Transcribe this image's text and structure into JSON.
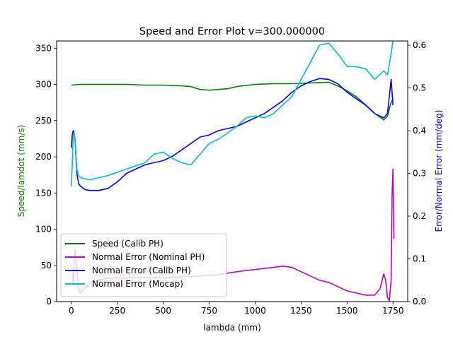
{
  "chart_data": {
    "type": "line",
    "title": "Speed and Error Plot v=300.000000",
    "xlabel": "lambda (mm)",
    "ylabel_left": "Speed/lamdot (mm/s)",
    "ylabel_right": "Error/Normal Error (mm/deg)",
    "xlim": [
      -80,
      1830
    ],
    "ylim_left": [
      0,
      360
    ],
    "ylim_right": [
      0,
      0.61
    ],
    "x_ticks": [
      0,
      250,
      500,
      750,
      1000,
      1250,
      1500,
      1750
    ],
    "y_ticks_left": [
      0,
      50,
      100,
      150,
      200,
      250,
      300,
      350
    ],
    "y_ticks_right": [
      0.0,
      0.1,
      0.2,
      0.3,
      0.4,
      0.5,
      0.6
    ],
    "x_tick_labels": [
      "0",
      "250",
      "500",
      "750",
      "1000",
      "1250",
      "1500",
      "1750"
    ],
    "y_tick_labels_left": [
      "0",
      "50",
      "100",
      "150",
      "200",
      "250",
      "300",
      "350"
    ],
    "y_tick_labels_right": [
      "0.0",
      "0.1",
      "0.2",
      "0.3",
      "0.4",
      "0.5",
      "0.6"
    ],
    "grid": false,
    "legend_position": "lower-left",
    "series": [
      {
        "name": "Speed (Calib PH)",
        "color": "#008000",
        "axis": "left",
        "points": [
          [
            0,
            299
          ],
          [
            50,
            300
          ],
          [
            100,
            300
          ],
          [
            200,
            300
          ],
          [
            300,
            300
          ],
          [
            400,
            299
          ],
          [
            500,
            299
          ],
          [
            600,
            298
          ],
          [
            650,
            297
          ],
          [
            700,
            293
          ],
          [
            750,
            292
          ],
          [
            800,
            293
          ],
          [
            850,
            294
          ],
          [
            900,
            297
          ],
          [
            1000,
            300
          ],
          [
            1100,
            301
          ],
          [
            1200,
            301
          ],
          [
            1300,
            302
          ],
          [
            1400,
            303
          ],
          [
            1450,
            298
          ],
          [
            1500,
            291
          ],
          [
            1550,
            283
          ],
          [
            1600,
            272
          ],
          [
            1650,
            260
          ],
          [
            1700,
            251
          ],
          [
            1720,
            256
          ],
          [
            1740,
            275
          ],
          [
            1750,
            280
          ]
        ]
      },
      {
        "name": "Normal Error (Nominal PH)",
        "color": "#bf00bf",
        "axis": "right",
        "points": [
          [
            5,
            0.065
          ],
          [
            10,
            0.04
          ],
          [
            15,
            0.095
          ],
          [
            20,
            0.123
          ],
          [
            25,
            0.1
          ],
          [
            30,
            0.07
          ],
          [
            40,
            0.03
          ],
          [
            50,
            0.02
          ],
          [
            60,
            0.025
          ],
          [
            80,
            0.035
          ],
          [
            100,
            0.045
          ],
          [
            150,
            0.05
          ],
          [
            200,
            0.055
          ],
          [
            250,
            0.055
          ],
          [
            300,
            0.055
          ],
          [
            400,
            0.057
          ],
          [
            500,
            0.055
          ],
          [
            600,
            0.058
          ],
          [
            700,
            0.06
          ],
          [
            800,
            0.063
          ],
          [
            900,
            0.07
          ],
          [
            1000,
            0.075
          ],
          [
            1100,
            0.08
          ],
          [
            1150,
            0.083
          ],
          [
            1200,
            0.08
          ],
          [
            1250,
            0.07
          ],
          [
            1300,
            0.06
          ],
          [
            1350,
            0.05
          ],
          [
            1400,
            0.045
          ],
          [
            1450,
            0.035
          ],
          [
            1500,
            0.025
          ],
          [
            1550,
            0.02
          ],
          [
            1600,
            0.015
          ],
          [
            1650,
            0.015
          ],
          [
            1680,
            0.03
          ],
          [
            1700,
            0.065
          ],
          [
            1710,
            0.05
          ],
          [
            1720,
            0.01
          ],
          [
            1730,
            0.002
          ],
          [
            1740,
            0.05
          ],
          [
            1745,
            0.25
          ],
          [
            1750,
            0.31
          ],
          [
            1755,
            0.147
          ]
        ]
      },
      {
        "name": "Normal Error (Calib PH)",
        "color": "#0000ff",
        "axis": "right",
        "points": [
          [
            0,
            0.36
          ],
          [
            5,
            0.39
          ],
          [
            10,
            0.4
          ],
          [
            15,
            0.395
          ],
          [
            20,
            0.38
          ],
          [
            25,
            0.34
          ],
          [
            30,
            0.3
          ],
          [
            40,
            0.275
          ],
          [
            50,
            0.27
          ],
          [
            75,
            0.262
          ],
          [
            100,
            0.26
          ],
          [
            150,
            0.26
          ],
          [
            200,
            0.265
          ],
          [
            250,
            0.28
          ],
          [
            300,
            0.3
          ],
          [
            400,
            0.32
          ],
          [
            500,
            0.33
          ],
          [
            550,
            0.34
          ],
          [
            600,
            0.355
          ],
          [
            650,
            0.37
          ],
          [
            700,
            0.385
          ],
          [
            750,
            0.39
          ],
          [
            800,
            0.4
          ],
          [
            850,
            0.405
          ],
          [
            900,
            0.41
          ],
          [
            950,
            0.42
          ],
          [
            1000,
            0.43
          ],
          [
            1050,
            0.44
          ],
          [
            1100,
            0.455
          ],
          [
            1150,
            0.47
          ],
          [
            1200,
            0.49
          ],
          [
            1250,
            0.505
          ],
          [
            1300,
            0.515
          ],
          [
            1350,
            0.522
          ],
          [
            1400,
            0.52
          ],
          [
            1450,
            0.51
          ],
          [
            1500,
            0.49
          ],
          [
            1550,
            0.475
          ],
          [
            1600,
            0.46
          ],
          [
            1650,
            0.44
          ],
          [
            1700,
            0.43
          ],
          [
            1720,
            0.44
          ],
          [
            1740,
            0.52
          ],
          [
            1750,
            0.46
          ]
        ]
      },
      {
        "name": "Normal Error (Mocap)",
        "color": "#00bfbf",
        "axis": "right",
        "points": [
          [
            0,
            0.27
          ],
          [
            5,
            0.32
          ],
          [
            10,
            0.39
          ],
          [
            15,
            0.395
          ],
          [
            20,
            0.38
          ],
          [
            25,
            0.34
          ],
          [
            30,
            0.31
          ],
          [
            40,
            0.295
          ],
          [
            50,
            0.29
          ],
          [
            100,
            0.285
          ],
          [
            150,
            0.29
          ],
          [
            200,
            0.295
          ],
          [
            300,
            0.31
          ],
          [
            400,
            0.325
          ],
          [
            450,
            0.345
          ],
          [
            500,
            0.35
          ],
          [
            550,
            0.335
          ],
          [
            600,
            0.325
          ],
          [
            650,
            0.32
          ],
          [
            700,
            0.345
          ],
          [
            750,
            0.37
          ],
          [
            800,
            0.38
          ],
          [
            850,
            0.395
          ],
          [
            900,
            0.41
          ],
          [
            950,
            0.43
          ],
          [
            1000,
            0.435
          ],
          [
            1050,
            0.43
          ],
          [
            1100,
            0.44
          ],
          [
            1150,
            0.46
          ],
          [
            1200,
            0.48
          ],
          [
            1250,
            0.52
          ],
          [
            1300,
            0.56
          ],
          [
            1350,
            0.6
          ],
          [
            1400,
            0.605
          ],
          [
            1450,
            0.58
          ],
          [
            1500,
            0.55
          ],
          [
            1550,
            0.55
          ],
          [
            1600,
            0.545
          ],
          [
            1650,
            0.52
          ],
          [
            1700,
            0.54
          ],
          [
            1720,
            0.53
          ],
          [
            1740,
            0.58
          ],
          [
            1750,
            0.62
          ]
        ]
      }
    ]
  }
}
